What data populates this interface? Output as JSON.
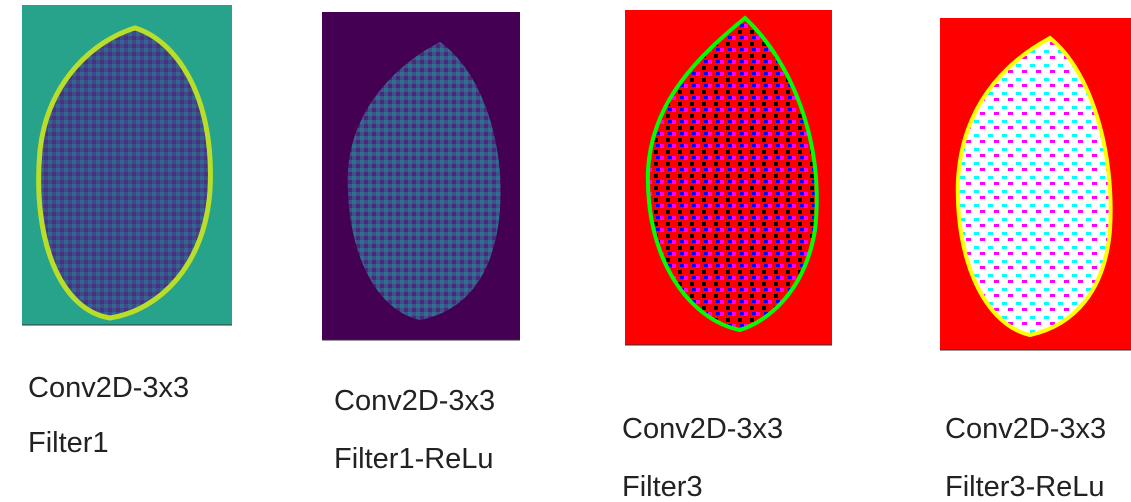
{
  "panels": [
    {
      "caption": "Conv2D-3x3",
      "subcaption": "Filter1"
    },
    {
      "caption": "Conv2D-3x3",
      "subcaption": "Filter1-ReLu"
    },
    {
      "caption": "Conv2D-3x3",
      "subcaption": "Filter3"
    },
    {
      "caption": "Conv2D-3x3",
      "subcaption": "Filter3-ReLu"
    }
  ]
}
